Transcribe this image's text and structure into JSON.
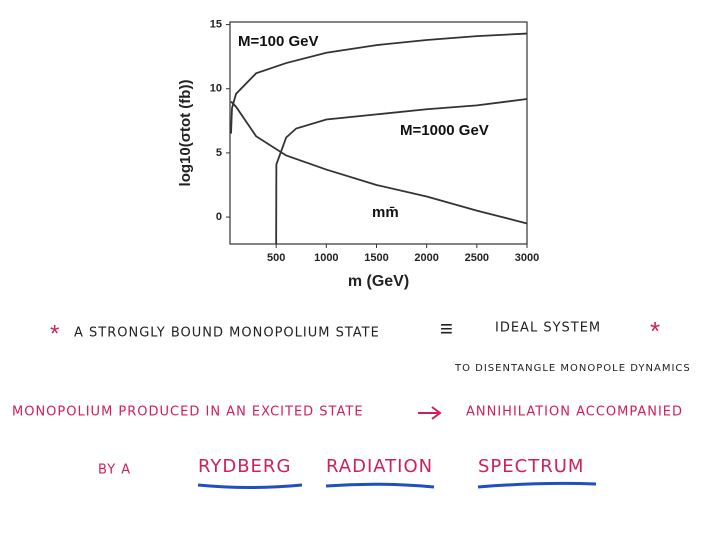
{
  "chart_data": {
    "type": "line",
    "x_label": "m (GeV)",
    "y_label": "log10(σtot (fb))",
    "xlim": [
      40,
      3000
    ],
    "xticks": [
      500,
      1000,
      1500,
      2000,
      2500,
      3000
    ],
    "ylim": [
      -2.1,
      15.2
    ],
    "yticks": [
      0,
      5,
      10,
      15
    ],
    "series": [
      {
        "name": "M=100 GeV",
        "color": "#333333",
        "x": [
          50,
          60,
          100,
          300,
          600,
          1000,
          1500,
          2000,
          2500,
          3000
        ],
        "values": [
          6.5,
          8.5,
          9.6,
          11.2,
          12.0,
          12.8,
          13.4,
          13.8,
          14.1,
          14.3
        ]
      },
      {
        "name": "M=1000 GeV",
        "color": "#333333",
        "x": [
          500,
          502,
          600,
          700,
          1000,
          1500,
          2000,
          2500,
          3000
        ],
        "values": [
          -2.1,
          4.1,
          6.2,
          6.9,
          7.6,
          8.0,
          8.4,
          8.7,
          9.2
        ]
      },
      {
        "name": "mm̄",
        "color": "#333333",
        "x": [
          50,
          100,
          300,
          600,
          1000,
          1500,
          2000,
          2500,
          3000
        ],
        "values": [
          9.0,
          8.6,
          6.3,
          4.8,
          3.7,
          2.5,
          1.6,
          0.5,
          -0.5
        ]
      }
    ]
  },
  "notes": {
    "line1_left": "A STRONGLY BOUND MONOPOLIUM STATE",
    "line1_right": "IDEAL SYSTEM",
    "line2": "TO DISENTANGLE MONOPOLE DYNAMICS",
    "line3_left": "MONOPOLIUM PRODUCED IN AN EXCITED STATE",
    "line3_right": "ANNIHILATION ACCOMPANIED",
    "line4_lead": "BY A",
    "line4_words": [
      "RYDBERG",
      "RADIATION",
      "SPECTRUM"
    ]
  }
}
